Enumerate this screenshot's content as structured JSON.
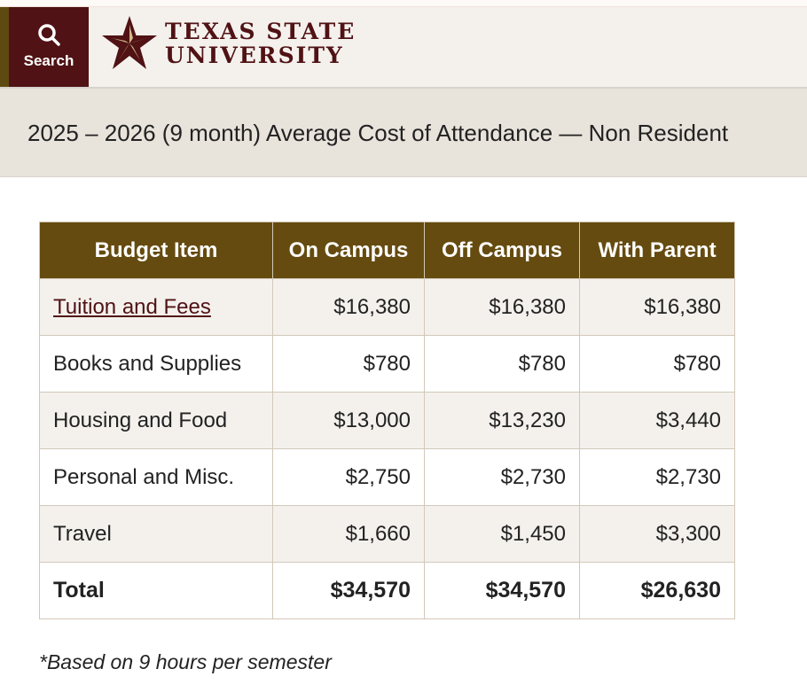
{
  "header": {
    "search_label": "Search",
    "logo_line1": "TEXAS STATE",
    "logo_line2": "UNIVERSITY",
    "brand_colors": {
      "maroon": "#501214",
      "gold": "#654b0f"
    }
  },
  "page_title": "2025 – 2026 (9 month) Average Cost of Attendance — Non Resident",
  "table": {
    "columns": [
      "Budget Item",
      "On Campus",
      "Off Campus",
      "With Parent"
    ],
    "rows": [
      {
        "item": "Tuition and Fees",
        "on_campus": "$16,380",
        "off_campus": "$16,380",
        "with_parent": "$16,380",
        "link": true
      },
      {
        "item": "Books and Supplies",
        "on_campus": "$780",
        "off_campus": "$780",
        "with_parent": "$780"
      },
      {
        "item": "Housing and Food",
        "on_campus": "$13,000",
        "off_campus": "$13,230",
        "with_parent": "$3,440"
      },
      {
        "item": "Personal and Misc.",
        "on_campus": "$2,750",
        "off_campus": "$2,730",
        "with_parent": "$2,730"
      },
      {
        "item": "Travel",
        "on_campus": "$1,660",
        "off_campus": "$1,450",
        "with_parent": "$3,300"
      },
      {
        "item": "Total",
        "on_campus": "$34,570",
        "off_campus": "$34,570",
        "with_parent": "$26,630"
      }
    ]
  },
  "footnote": "*Based on 9 hours per semester"
}
